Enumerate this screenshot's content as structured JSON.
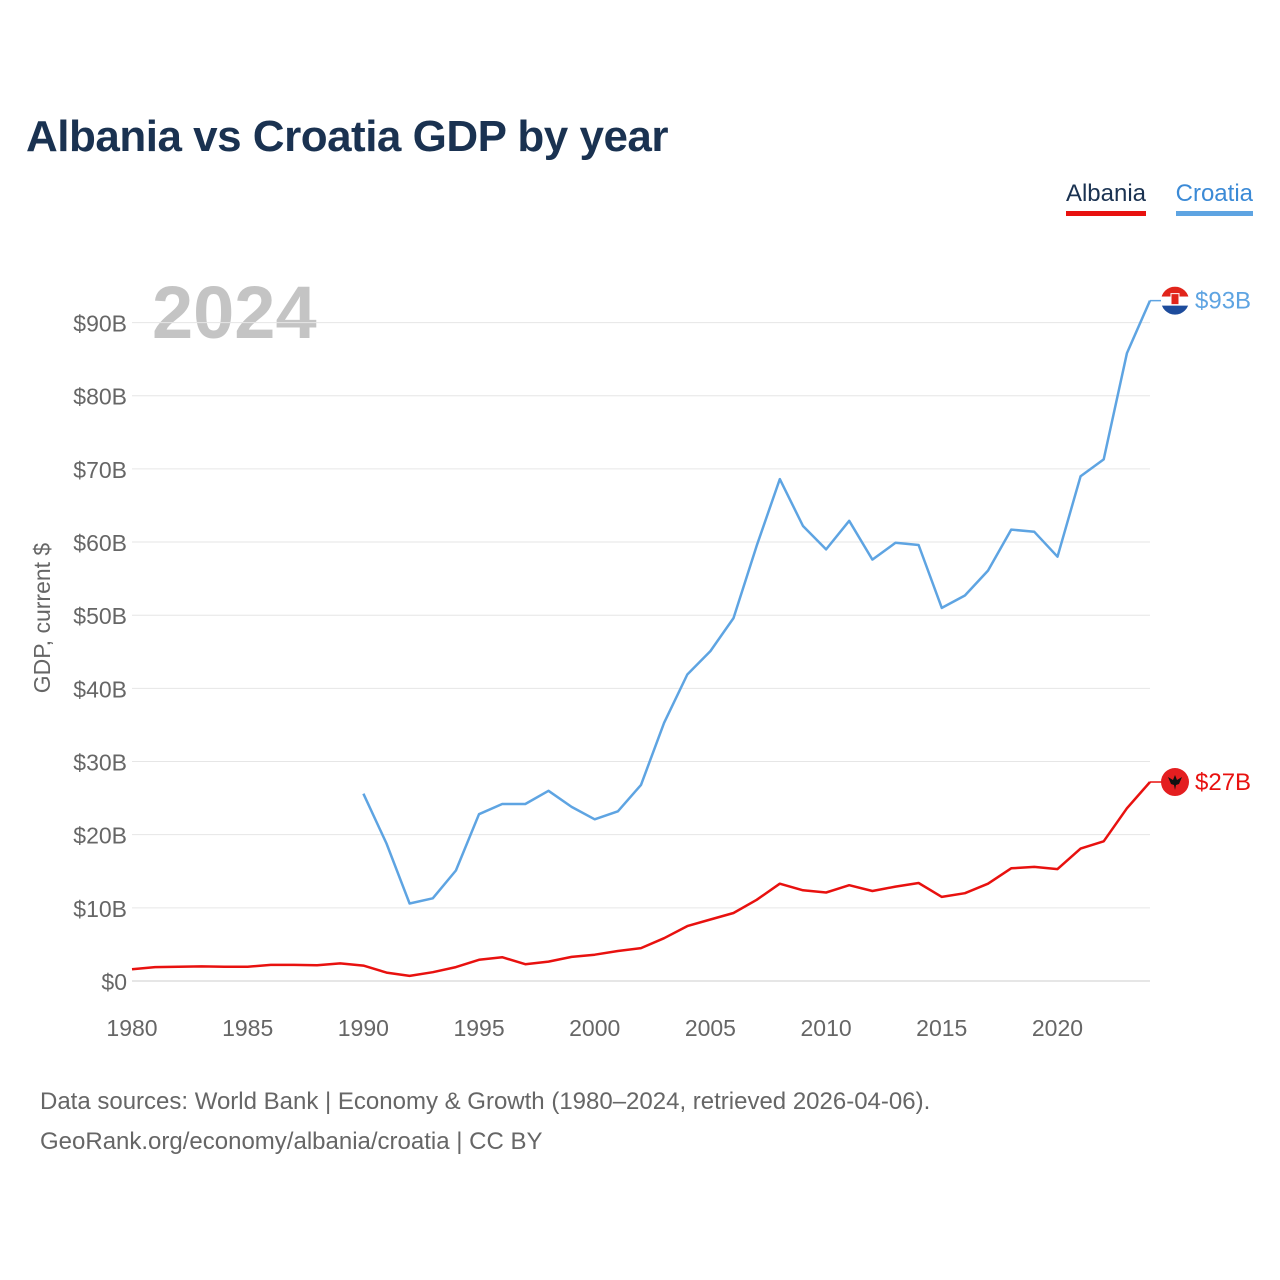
{
  "title": "Albania vs Croatia GDP by year",
  "legend": {
    "albania": "Albania",
    "croatia": "Croatia"
  },
  "colors": {
    "albania": "#e8110f",
    "croatia": "#5ea4e2",
    "title": "#1a3251",
    "year": "#c4c4c4",
    "grid": "#e6e6e6",
    "axis_text": "#666666"
  },
  "source": {
    "line1": "Data sources: World Bank | Economy & Growth (1980–2024, retrieved 2026-04-06).",
    "line2": "GeoRank.org/economy/albania/croatia | CC BY"
  },
  "chart_data": {
    "type": "line",
    "title": "Albania vs Croatia GDP by year",
    "year_label": "2024",
    "ylabel": "GDP, current $",
    "xlabel": "",
    "xlim": [
      1980,
      2024
    ],
    "ylim": [
      0,
      95
    ],
    "unit": "billion current US$",
    "x_ticks": [
      1980,
      1985,
      1990,
      1995,
      2000,
      2005,
      2010,
      2015,
      2020
    ],
    "y_ticks": [
      {
        "value": 0,
        "label": "$0"
      },
      {
        "value": 10,
        "label": "$10B"
      },
      {
        "value": 20,
        "label": "$20B"
      },
      {
        "value": 30,
        "label": "$30B"
      },
      {
        "value": 40,
        "label": "$40B"
      },
      {
        "value": 50,
        "label": "$50B"
      },
      {
        "value": 60,
        "label": "$60B"
      },
      {
        "value": 70,
        "label": "$70B"
      },
      {
        "value": 80,
        "label": "$80B"
      },
      {
        "value": 90,
        "label": "$90B"
      }
    ],
    "series": [
      {
        "name": "Albania",
        "color": "#e8110f",
        "end_label": "$27B",
        "flag_icon": "albania-flag-icon",
        "points": [
          [
            1980,
            1.6
          ],
          [
            1981,
            1.9
          ],
          [
            1982,
            1.95
          ],
          [
            1983,
            2.0
          ],
          [
            1984,
            1.95
          ],
          [
            1985,
            1.95
          ],
          [
            1986,
            2.2
          ],
          [
            1987,
            2.2
          ],
          [
            1988,
            2.15
          ],
          [
            1989,
            2.4
          ],
          [
            1990,
            2.1
          ],
          [
            1991,
            1.15
          ],
          [
            1992,
            0.7
          ],
          [
            1993,
            1.2
          ],
          [
            1994,
            1.9
          ],
          [
            1995,
            2.9
          ],
          [
            1996,
            3.25
          ],
          [
            1997,
            2.3
          ],
          [
            1998,
            2.65
          ],
          [
            1999,
            3.3
          ],
          [
            2000,
            3.6
          ],
          [
            2001,
            4.1
          ],
          [
            2002,
            4.5
          ],
          [
            2003,
            5.85
          ],
          [
            2004,
            7.5
          ],
          [
            2005,
            8.4
          ],
          [
            2006,
            9.3
          ],
          [
            2007,
            11.1
          ],
          [
            2008,
            13.3
          ],
          [
            2009,
            12.4
          ],
          [
            2010,
            12.1
          ],
          [
            2011,
            13.1
          ],
          [
            2012,
            12.3
          ],
          [
            2013,
            12.9
          ],
          [
            2014,
            13.4
          ],
          [
            2015,
            11.5
          ],
          [
            2016,
            12.0
          ],
          [
            2017,
            13.3
          ],
          [
            2018,
            15.4
          ],
          [
            2019,
            15.6
          ],
          [
            2020,
            15.3
          ],
          [
            2021,
            18.1
          ],
          [
            2022,
            19.1
          ],
          [
            2023,
            23.6
          ],
          [
            2024,
            27.2
          ]
        ]
      },
      {
        "name": "Croatia",
        "color": "#5ea4e2",
        "end_label": "$93B",
        "flag_icon": "croatia-flag-icon",
        "points": [
          [
            1990,
            25.6
          ],
          [
            1991,
            18.8
          ],
          [
            1992,
            10.6
          ],
          [
            1993,
            11.3
          ],
          [
            1994,
            15.1
          ],
          [
            1995,
            22.8
          ],
          [
            1996,
            24.2
          ],
          [
            1997,
            24.2
          ],
          [
            1998,
            26.0
          ],
          [
            1999,
            23.8
          ],
          [
            2000,
            22.1
          ],
          [
            2001,
            23.2
          ],
          [
            2002,
            26.8
          ],
          [
            2003,
            35.3
          ],
          [
            2004,
            41.9
          ],
          [
            2005,
            45.1
          ],
          [
            2006,
            49.6
          ],
          [
            2007,
            59.5
          ],
          [
            2008,
            68.6
          ],
          [
            2009,
            62.2
          ],
          [
            2010,
            59.0
          ],
          [
            2011,
            62.9
          ],
          [
            2012,
            57.6
          ],
          [
            2013,
            59.9
          ],
          [
            2014,
            59.6
          ],
          [
            2015,
            51.0
          ],
          [
            2016,
            52.7
          ],
          [
            2017,
            56.1
          ],
          [
            2018,
            61.7
          ],
          [
            2019,
            61.4
          ],
          [
            2020,
            58.0
          ],
          [
            2021,
            69.0
          ],
          [
            2022,
            71.3
          ],
          [
            2023,
            85.8
          ],
          [
            2024,
            93.0
          ]
        ]
      }
    ]
  }
}
